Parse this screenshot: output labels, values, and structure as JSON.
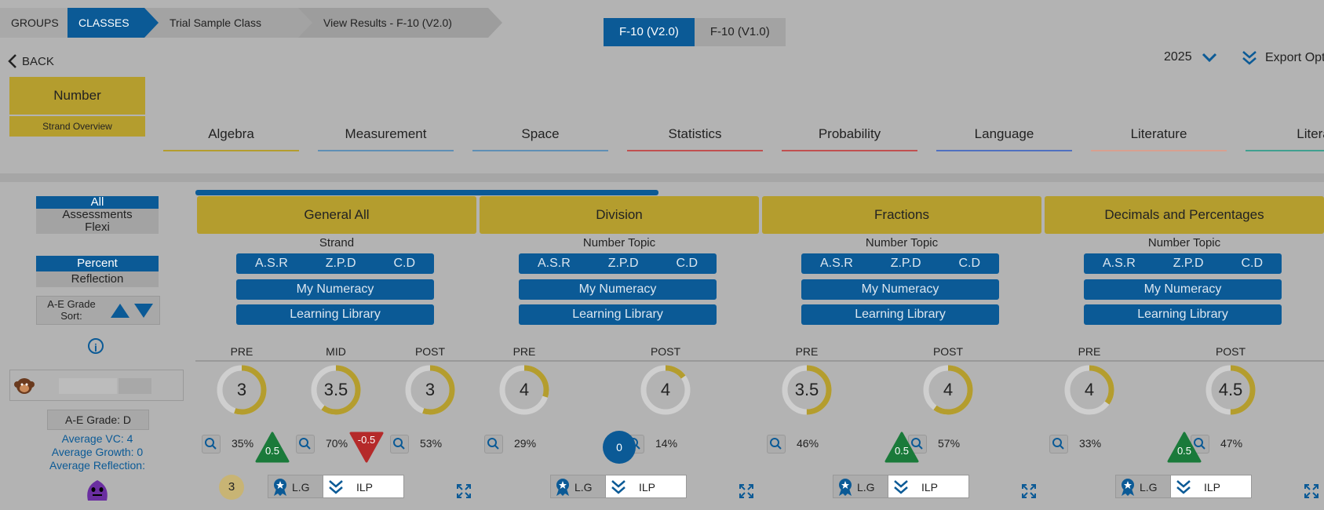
{
  "breadcrumb": {
    "groups": "GROUPS",
    "classes": "CLASSES",
    "trial": "Trial Sample Class",
    "results": "View Results - F-10 (V2.0)"
  },
  "versions": {
    "active": "F-10 (V2.0)",
    "inactive": "F-10 (V1.0)"
  },
  "back_label": "BACK",
  "year": "2025",
  "export_label": "Export Opt",
  "strand": {
    "number": "Number",
    "overview": "Strand Overview"
  },
  "strand_tabs": [
    {
      "label": "Algebra",
      "color": "#b49d2e"
    },
    {
      "label": "Measurement",
      "color": "#5f8fb5"
    },
    {
      "label": "Space",
      "color": "#5f8fb5"
    },
    {
      "label": "Statistics",
      "color": "#c05050"
    },
    {
      "label": "Probability",
      "color": "#c05050"
    },
    {
      "label": "Language",
      "color": "#5070c0"
    },
    {
      "label": "Literature",
      "color": "#d8a090"
    },
    {
      "label": "Litera",
      "color": "#40a090"
    }
  ],
  "filters": {
    "assess": [
      "All",
      "Assessments",
      "Flexi"
    ],
    "mode": [
      "Percent",
      "Reflection"
    ],
    "sort_label": "A-E Grade Sort:"
  },
  "student": {
    "grade": "A-E Grade: D",
    "avg_vc": "Average VC: 4",
    "avg_growth": "Average Growth: 0",
    "avg_reflection": "Average Reflection:",
    "grade_value": "3"
  },
  "common": {
    "asr": "A.S.R",
    "zpd": "Z.P.D",
    "cd": "C.D",
    "numeracy": "My Numeracy",
    "library": "Learning Library",
    "lg": "L.G",
    "ilp": "ILP"
  },
  "columns": [
    {
      "title": "General All",
      "sub": "Strand",
      "labels": [
        "PRE",
        "MID",
        "POST"
      ],
      "rings": [
        {
          "v": "3",
          "f": 0.55
        },
        {
          "v": "3.5",
          "f": 0.6
        },
        {
          "v": "3",
          "f": 0.55
        }
      ],
      "pcts": [
        "35%",
        "70%",
        "53%"
      ],
      "growth": [
        "0.5",
        "-0.5"
      ]
    },
    {
      "title": "Division",
      "sub": "Number Topic",
      "labels": [
        "PRE",
        "POST"
      ],
      "rings": [
        {
          "v": "4",
          "f": 0.3
        },
        {
          "v": "4",
          "f": 0.15
        }
      ],
      "pcts": [
        "29%",
        "14%"
      ],
      "growth": [
        "0"
      ]
    },
    {
      "title": "Fractions",
      "sub": "Number Topic",
      "labels": [
        "PRE",
        "POST"
      ],
      "rings": [
        {
          "v": "3.5",
          "f": 0.5
        },
        {
          "v": "4",
          "f": 0.6
        }
      ],
      "pcts": [
        "46%",
        "57%"
      ],
      "growth": [
        "0.5"
      ]
    },
    {
      "title": "Decimals and Percentages",
      "sub": "Number Topic",
      "labels": [
        "PRE",
        "POST"
      ],
      "rings": [
        {
          "v": "4",
          "f": 0.35
        },
        {
          "v": "4.5",
          "f": 0.5
        }
      ],
      "pcts": [
        "33%",
        "47%"
      ],
      "growth": [
        "0.5"
      ]
    }
  ],
  "colors": {
    "blue": "#0b5a96",
    "gold": "#b49d2e",
    "green": "#1a7a3a",
    "red": "#b52a2a"
  }
}
